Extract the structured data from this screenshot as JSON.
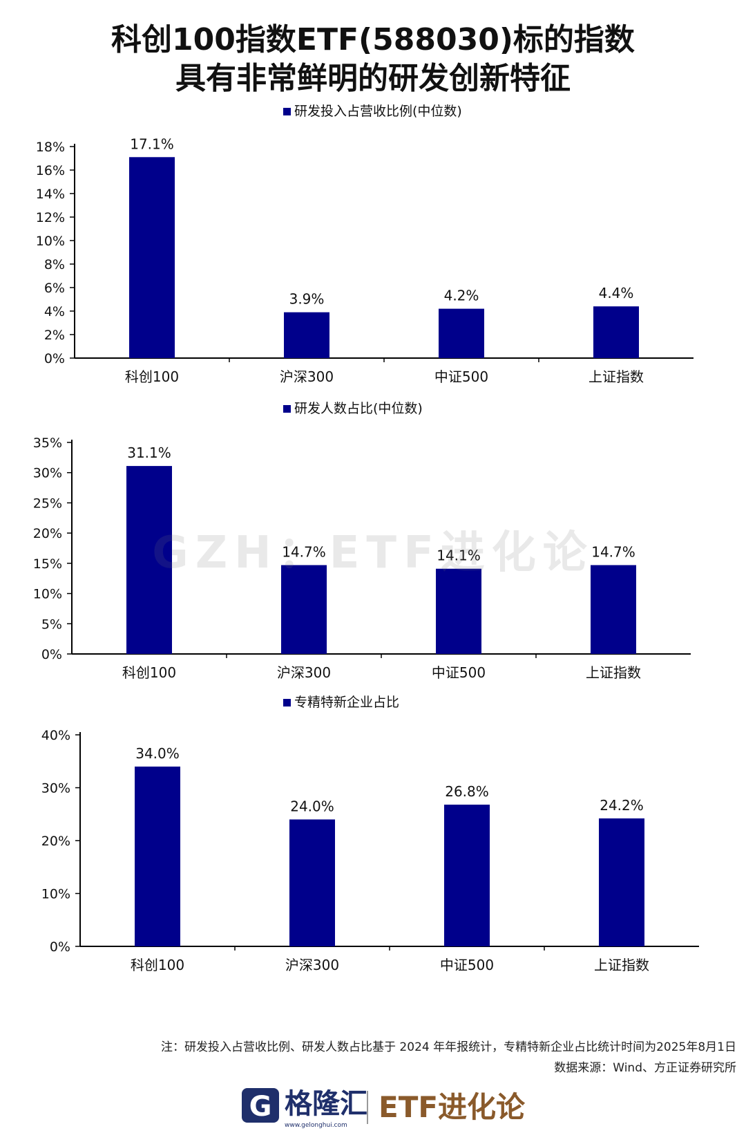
{
  "title_line1": "科创100指数ETF(588030)标的指数",
  "title_line2": "具有非常鲜明的研发创新特征",
  "colors": {
    "bar": "#00008B",
    "axis": "#000000",
    "brand_blue": "#1f2f6b",
    "brand_brown": "#8a5a2b"
  },
  "watermark": "GZH：ETF进化论",
  "chart_data": [
    {
      "type": "bar",
      "title": "",
      "legend": "研发投入占营收比例(中位数)",
      "categories": [
        "科创100",
        "沪深300",
        "中证500",
        "上证指数"
      ],
      "series": [
        {
          "name": "研发投入占营收比例(中位数)",
          "values": [
            17.1,
            3.9,
            4.2,
            4.4
          ]
        }
      ],
      "value_labels": [
        "17.1%",
        "3.9%",
        "4.2%",
        "4.4%"
      ],
      "yticks": [
        "0%",
        "2%",
        "4%",
        "6%",
        "8%",
        "10%",
        "12%",
        "14%",
        "16%",
        "18%"
      ],
      "ylim": [
        0,
        18
      ],
      "legend_position": "top-center",
      "grid": false
    },
    {
      "type": "bar",
      "title": "",
      "legend": "研发人数占比(中位数)",
      "categories": [
        "科创100",
        "沪深300",
        "中证500",
        "上证指数"
      ],
      "series": [
        {
          "name": "研发人数占比(中位数)",
          "values": [
            31.1,
            14.7,
            14.1,
            14.7
          ]
        }
      ],
      "value_labels": [
        "31.1%",
        "14.7%",
        "14.1%",
        "14.7%"
      ],
      "yticks": [
        "0%",
        "5%",
        "10%",
        "15%",
        "20%",
        "25%",
        "30%",
        "35%"
      ],
      "ylim": [
        0,
        35
      ],
      "legend_position": "top-center",
      "grid": false
    },
    {
      "type": "bar",
      "title": "",
      "legend": "专精特新企业占比",
      "categories": [
        "科创100",
        "沪深300",
        "中证500",
        "上证指数"
      ],
      "series": [
        {
          "name": "专精特新企业占比",
          "values": [
            34.0,
            24.0,
            26.8,
            24.2
          ]
        }
      ],
      "value_labels": [
        "34.0%",
        "24.0%",
        "26.8%",
        "24.2%"
      ],
      "yticks": [
        "0%",
        "10%",
        "20%",
        "30%",
        "40%"
      ],
      "ylim": [
        0,
        40
      ],
      "legend_position": "top-center",
      "grid": false
    }
  ],
  "note": "注：研发投入占营收比例、研发人数占比基于 2024 年年报统计，专精特新企业占比统计时间为2025年8月1日",
  "source": "数据来源：Wind、方正证券研究所",
  "footer": {
    "logo_glyph": "G",
    "logo_name": "格隆汇",
    "logo_url": "www.gelonghui.com",
    "brand": "ETF进化论"
  }
}
